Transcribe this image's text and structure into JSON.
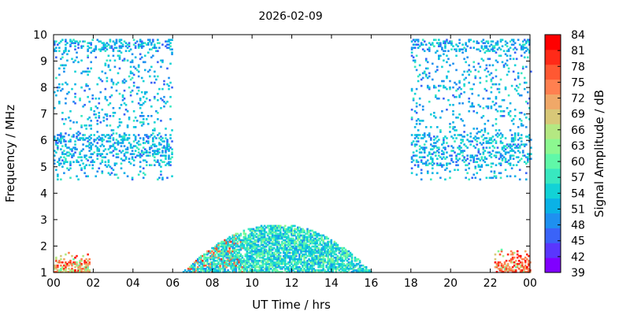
{
  "chart_data": {
    "type": "heatmap",
    "title": "2026-02-09",
    "xlabel": "UT Time / hrs",
    "ylabel": "Frequency / MHz",
    "colorbar_label": "Signal Amplitude / dB",
    "xlim": [
      0,
      24
    ],
    "ylim": [
      1,
      10
    ],
    "x_ticks": [
      "00",
      "02",
      "04",
      "06",
      "08",
      "10",
      "12",
      "14",
      "16",
      "18",
      "20",
      "22",
      "00"
    ],
    "y_ticks": [
      "1",
      "2",
      "3",
      "4",
      "5",
      "6",
      "7",
      "8",
      "9",
      "10"
    ],
    "colorbar": {
      "ticks": [
        "39",
        "42",
        "45",
        "48",
        "51",
        "54",
        "57",
        "60",
        "63",
        "66",
        "69",
        "72",
        "75",
        "78",
        "81",
        "84"
      ],
      "colors": [
        "#8000ff",
        "#5a36fd",
        "#3a63f8",
        "#1e90f0",
        "#0ab2e6",
        "#12d2d6",
        "#38e8c0",
        "#60f8a8",
        "#8cf890",
        "#b4e882",
        "#d8c878",
        "#f0a868",
        "#ff8050",
        "#ff5832",
        "#ff2a18",
        "#ff0000"
      ]
    },
    "grid": false,
    "regions": [
      {
        "id": "daytime-low-band",
        "t": [
          6.5,
          16.0
        ],
        "f": [
          1.0,
          2.8
        ],
        "dominant_db": [
          48,
          63
        ],
        "peak_db": 81
      },
      {
        "id": "night-upper-band-early",
        "t": [
          0.0,
          6.0
        ],
        "f": [
          4.5,
          9.8
        ],
        "dominant_db": [
          45,
          57
        ]
      },
      {
        "id": "night-upper-band-late",
        "t": [
          18.0,
          24.0
        ],
        "f": [
          4.5,
          9.8
        ],
        "dominant_db": [
          45,
          57
        ]
      },
      {
        "id": "midnight-low-burst-early",
        "t": [
          0.0,
          1.8
        ],
        "f": [
          1.0,
          1.8
        ],
        "dominant_db": [
          60,
          75
        ]
      },
      {
        "id": "midnight-low-burst-late",
        "t": [
          22.2,
          24.0
        ],
        "f": [
          1.0,
          1.9
        ],
        "dominant_db": [
          60,
          84
        ]
      }
    ]
  }
}
